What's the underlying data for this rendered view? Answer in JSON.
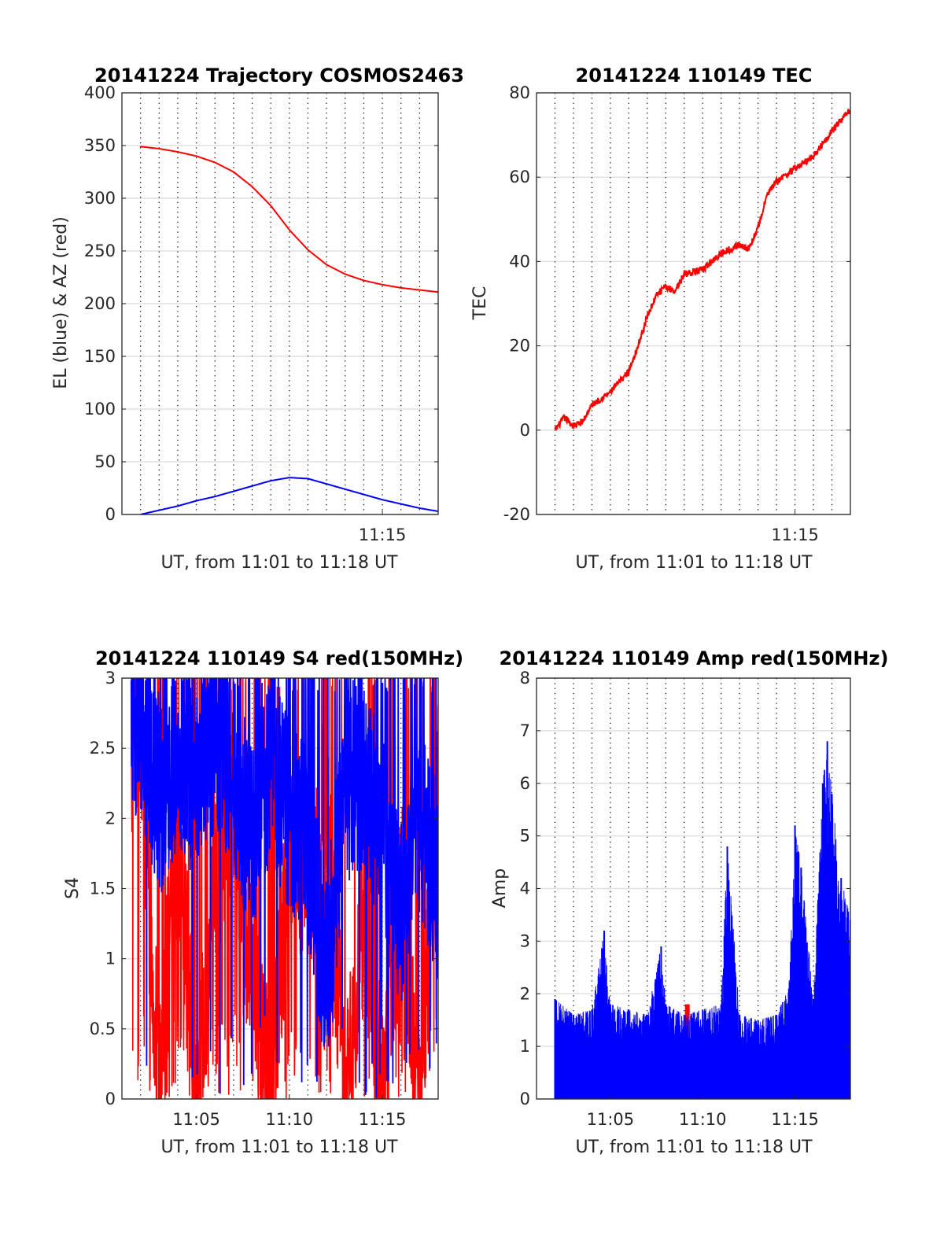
{
  "chart_data": [
    {
      "type": "line",
      "title": "20141224 Trajectory COSMOS2463",
      "xlabel": "UT, from 11:01 to 11:18 UT",
      "ylabel": "EL (blue) & AZ (red)",
      "xlim": [
        "11:01",
        "11:18"
      ],
      "ylim": [
        0,
        400
      ],
      "yticks": [
        0,
        50,
        100,
        150,
        200,
        250,
        300,
        350,
        400
      ],
      "xtick_labels": [
        "11:15"
      ],
      "grid": "x dotted (every 1 min), y solid",
      "series": [
        {
          "color": "#ff0000",
          "x": [
            "11:02",
            "11:03",
            "11:04",
            "11:05",
            "11:06",
            "11:07",
            "11:08",
            "11:09",
            "11:10",
            "11:11",
            "11:12",
            "11:13",
            "11:14",
            "11:15",
            "11:16",
            "11:17",
            "11:18"
          ],
          "values": [
            349,
            347,
            344,
            340,
            334,
            325,
            311,
            293,
            270,
            251,
            237,
            228,
            222,
            218,
            215,
            213,
            211
          ]
        },
        {
          "color": "#0000ff",
          "x": [
            "11:02",
            "11:03",
            "11:04",
            "11:05",
            "11:06",
            "11:07",
            "11:08",
            "11:09",
            "11:10",
            "11:11",
            "11:12",
            "11:13",
            "11:14",
            "11:15",
            "11:16",
            "11:17",
            "11:18"
          ],
          "values": [
            0,
            4,
            8,
            13,
            17,
            22,
            27,
            32,
            35,
            34,
            29,
            24,
            19,
            14,
            10,
            6,
            3
          ]
        }
      ]
    },
    {
      "type": "line",
      "title": "20141224 110149 TEC",
      "xlabel": "UT, from 11:01 to 11:18 UT",
      "ylabel": "TEC",
      "xlim": [
        "11:01",
        "11:18"
      ],
      "ylim": [
        -20,
        80
      ],
      "yticks": [
        -20,
        0,
        20,
        40,
        60,
        80
      ],
      "xtick_labels": [
        "11:15"
      ],
      "grid": "x dotted (every 1 min), y solid",
      "series": [
        {
          "color": "#ff0000",
          "x": [
            "11:02",
            "11:02:30",
            "11:03",
            "11:03:30",
            "11:04",
            "11:05",
            "11:06",
            "11:06:30",
            "11:07",
            "11:07:30",
            "11:08",
            "11:08:30",
            "11:09",
            "11:10",
            "11:11",
            "11:12",
            "11:12:30",
            "11:13",
            "11:13:30",
            "11:14",
            "11:15",
            "11:16",
            "11:17",
            "11:18"
          ],
          "values": [
            0,
            3,
            1,
            2,
            6,
            9,
            14,
            20,
            27,
            32,
            34,
            33,
            37,
            38,
            42,
            44,
            43,
            48,
            56,
            59,
            62,
            65,
            71,
            76
          ]
        }
      ]
    },
    {
      "type": "line",
      "title": "20141224 110149 S4 red(150MHz)",
      "xlabel": "UT, from 11:01 to 11:18 UT",
      "ylabel": "S4",
      "xlim": [
        "11:01",
        "11:18"
      ],
      "ylim": [
        0,
        3
      ],
      "yticks": [
        0,
        0.5,
        1,
        1.5,
        2,
        2.5,
        3
      ],
      "xtick_labels": [
        "11:05",
        "11:10",
        "11:15"
      ],
      "grid": "x dotted (every 1 min), y solid",
      "series": [
        {
          "color": "#ff0000",
          "x": [
            "11:02",
            "11:03",
            "11:04",
            "11:05",
            "11:06",
            "11:07",
            "11:08",
            "11:09",
            "11:10",
            "11:11",
            "11:12",
            "11:13",
            "11:14",
            "11:15",
            "11:16",
            "11:17",
            "11:18"
          ],
          "values": [
            2.6,
            0.0,
            2.0,
            0.0,
            1.5,
            2.2,
            0.8,
            0.0,
            1.9,
            1.6,
            2.1,
            0.0,
            1.3,
            0.0,
            1.5,
            0.0,
            2.4
          ]
        },
        {
          "color": "#0000ff",
          "x": [
            "11:02",
            "11:03",
            "11:04",
            "11:05",
            "11:06",
            "11:07",
            "11:08",
            "11:09",
            "11:10",
            "11:11",
            "11:12",
            "11:13",
            "11:14",
            "11:15",
            "11:16",
            "11:17",
            "11:18"
          ],
          "values": [
            2.7,
            2.1,
            2.5,
            2.2,
            2.6,
            2.3,
            1.9,
            2.4,
            2.0,
            1.8,
            0.9,
            2.2,
            2.3,
            1.9,
            1.3,
            2.0,
            1.5
          ]
        }
      ]
    },
    {
      "type": "line",
      "title": "20141224 110149 Amp red(150MHz)",
      "xlabel": "UT, from 11:01 to 11:18 UT",
      "ylabel": "Amp",
      "xlim": [
        "11:01",
        "11:18"
      ],
      "ylim": [
        0,
        8
      ],
      "yticks": [
        0,
        1,
        2,
        3,
        4,
        5,
        6,
        7,
        8
      ],
      "xtick_labels": [
        "11:05",
        "11:10",
        "11:15"
      ],
      "grid": "x dotted (every 1 min), y solid",
      "series": [
        {
          "color": "#ff0000",
          "x": [
            "11:09:10"
          ],
          "values": [
            1.8
          ]
        },
        {
          "color": "#0000ff",
          "x": [
            "11:02",
            "11:03",
            "11:04",
            "11:04:40",
            "11:05",
            "11:06",
            "11:07",
            "11:07:45",
            "11:08",
            "11:09",
            "11:10",
            "11:11",
            "11:11:20",
            "11:12",
            "11:13",
            "11:14",
            "11:14:40",
            "11:15",
            "11:15:20",
            "11:16",
            "11:16:30",
            "11:16:45",
            "11:17",
            "11:17:30",
            "11:18"
          ],
          "values": [
            1.9,
            1.6,
            1.7,
            3.2,
            1.8,
            1.7,
            1.6,
            2.9,
            1.8,
            1.6,
            1.7,
            1.8,
            4.8,
            1.6,
            1.5,
            1.6,
            2.1,
            5.2,
            4.4,
            1.9,
            6.0,
            6.8,
            5.8,
            4.2,
            3.4
          ]
        }
      ]
    }
  ]
}
